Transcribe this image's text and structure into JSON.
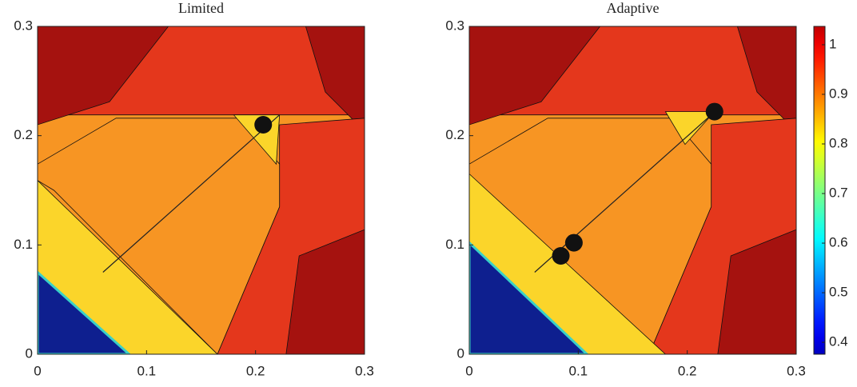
{
  "chart_data": [
    {
      "type": "contour",
      "title": "Limited",
      "xlim": [
        0,
        0.3
      ],
      "ylim": [
        0,
        0.3
      ],
      "xticks": [
        0,
        0.1,
        0.2,
        0.3
      ],
      "yticks": [
        0,
        0.1,
        0.2,
        0.3
      ]
    },
    {
      "type": "contour",
      "title": "Adaptive",
      "xlim": [
        0,
        0.3
      ],
      "ylim": [
        0,
        0.3
      ],
      "xticks": [
        0,
        0.1,
        0.2,
        0.3
      ],
      "yticks": [
        0,
        0.1,
        0.2,
        0.3
      ],
      "colorbar": {
        "colormap": "jet",
        "lim": [
          0.376,
          1.037
        ],
        "ticks": [
          0.4,
          0.5,
          0.6,
          0.7,
          0.8,
          0.9,
          1
        ]
      }
    }
  ]
}
